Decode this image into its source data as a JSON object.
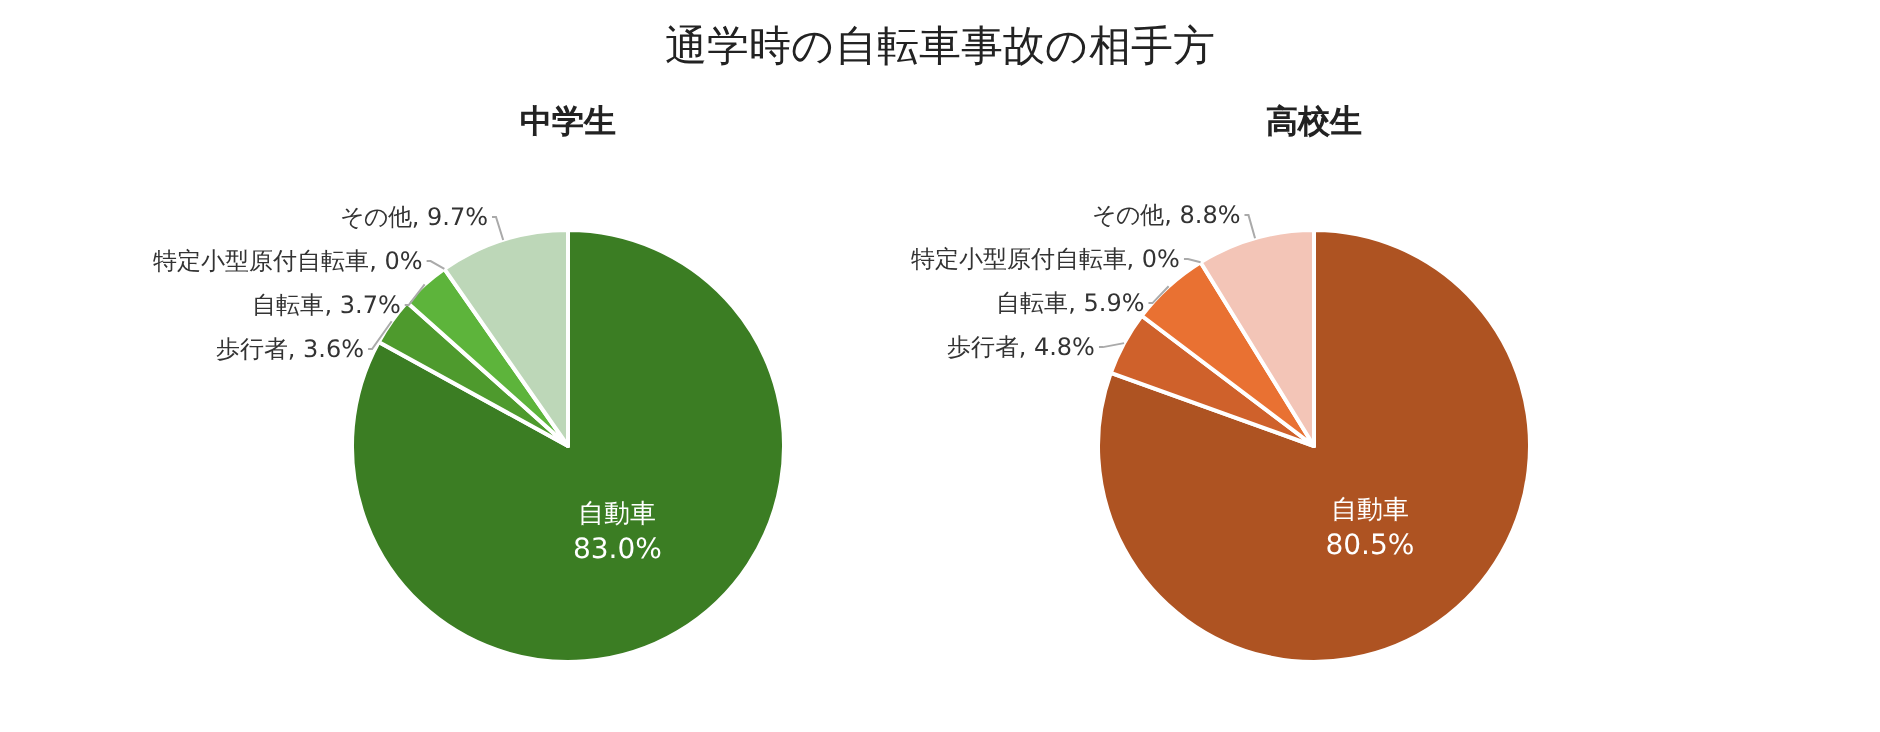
{
  "chart_data": [
    {
      "type": "pie",
      "title": "中学生",
      "annotations": [
        "通学時の自転車事故の相手方"
      ],
      "categories": [
        "自動車",
        "歩行者",
        "自転車",
        "特定小型原付自転車",
        "その他"
      ],
      "values": [
        83.0,
        3.6,
        3.7,
        0,
        9.7
      ],
      "value_labels": [
        "83.0%",
        ", 3.6%",
        ", 3.7%",
        ", 0%",
        ", 9.7%"
      ],
      "colors": [
        "#3b7d23",
        "#4e9a2d",
        "#5db43b",
        null,
        "#bdd7b8"
      ]
    },
    {
      "type": "pie",
      "title": "高校生",
      "categories": [
        "自動車",
        "歩行者",
        "自転車",
        "特定小型原付自転車",
        "その他"
      ],
      "values": [
        80.5,
        4.8,
        5.9,
        0,
        8.8
      ],
      "value_labels": [
        "80.5%",
        ", 4.8%",
        ", 5.9%",
        ", 0%",
        ", 8.8%"
      ],
      "colors": [
        "#ae5322",
        "#cf612b",
        "#e97132",
        null,
        "#f3c5b7"
      ]
    }
  ]
}
